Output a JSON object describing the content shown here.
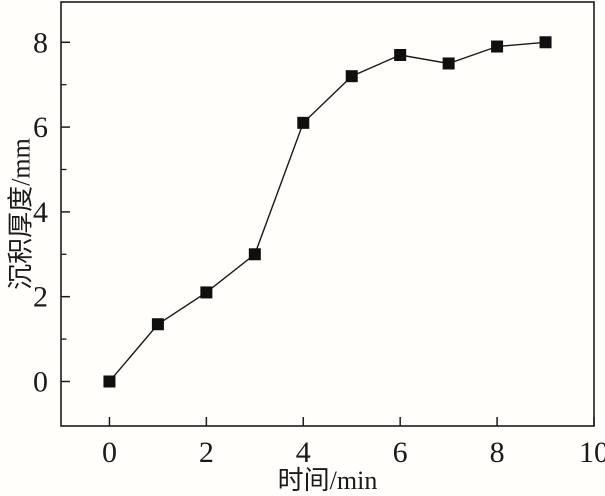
{
  "figure": {
    "background": "#fffefa",
    "frame_color": "#1c1c1c",
    "line_color": "#1a1a1a",
    "marker_color": "#0f0f0f",
    "text_color": "#1a1a1a"
  },
  "chart_data": {
    "type": "line",
    "title": "",
    "xlabel": "时间/min",
    "ylabel": "沉积厚度/mm",
    "x": [
      0,
      1,
      2,
      3,
      4,
      5,
      6,
      7,
      8,
      9
    ],
    "y": [
      0,
      1.35,
      2.1,
      3.0,
      6.1,
      7.2,
      7.7,
      7.5,
      7.9,
      8.0
    ],
    "marker": "filled-square",
    "marker_size_px": 12,
    "xlim": [
      -1,
      10
    ],
    "ylim": [
      -1.05,
      8.95
    ],
    "x_major_ticks": [
      0,
      2,
      4,
      6,
      8,
      10
    ],
    "y_major_ticks": [
      0,
      2,
      4,
      6,
      8
    ],
    "y_minor_ticks": [
      1,
      3,
      5,
      7
    ],
    "grid": false,
    "legend_position": "none"
  }
}
